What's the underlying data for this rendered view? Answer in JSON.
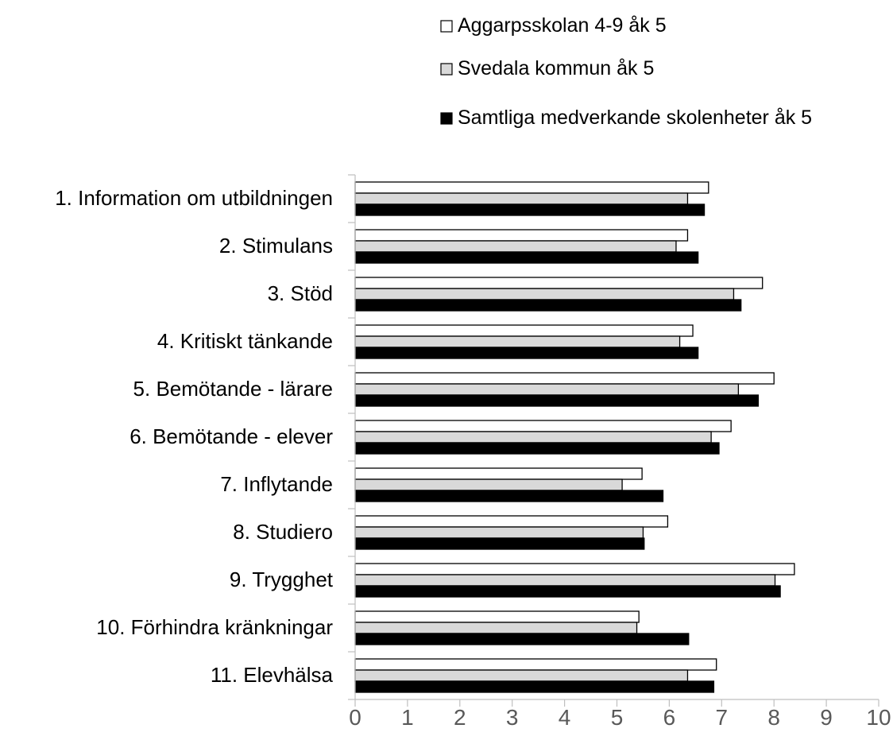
{
  "chart_data": {
    "type": "bar",
    "orientation": "horizontal",
    "categories": [
      "1. Information om utbildningen",
      "2. Stimulans",
      "3. Stöd",
      "4. Kritiskt tänkande",
      "5. Bemötande - lärare",
      "6. Bemötande - elever",
      "7. Inflytande",
      "8. Studiero",
      "9. Trygghet",
      "10. Förhindra kränkningar",
      "11. Elevhälsa"
    ],
    "series": [
      {
        "name": "Aggarpsskolan 4-9 åk 5",
        "color": "#ffffff",
        "values": [
          6.75,
          6.35,
          7.78,
          6.45,
          8.0,
          7.18,
          5.48,
          5.97,
          8.39,
          5.42,
          6.9
        ]
      },
      {
        "name": "Svedala kommun åk 5",
        "color": "#d9d9d9",
        "values": [
          6.35,
          6.13,
          7.23,
          6.2,
          7.32,
          6.8,
          5.1,
          5.5,
          8.02,
          5.38,
          6.35
        ]
      },
      {
        "name": "Samtliga medverkande skolenheter åk 5",
        "color": "#000000",
        "values": [
          6.67,
          6.55,
          7.37,
          6.55,
          7.7,
          6.95,
          5.88,
          5.52,
          8.12,
          6.37,
          6.85
        ]
      }
    ],
    "xlim": [
      0,
      10
    ],
    "xticks": [
      "0",
      "1",
      "2",
      "3",
      "4",
      "5",
      "6",
      "7",
      "8",
      "9",
      "10"
    ],
    "grid": false,
    "legend_position": "top-right",
    "title": "",
    "xlabel": "",
    "ylabel": ""
  }
}
